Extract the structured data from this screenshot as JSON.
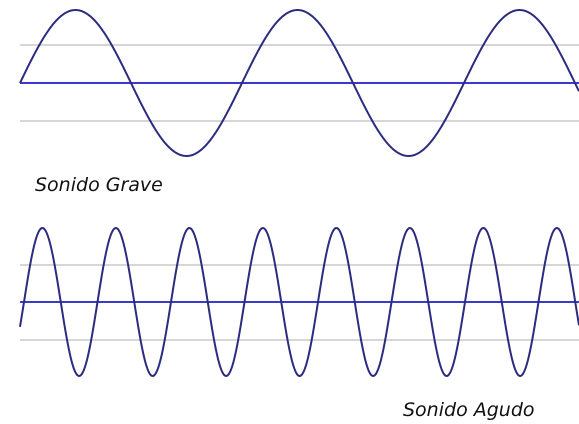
{
  "labels": {
    "low": "Sonido Grave",
    "high": "Sonido Agudo"
  }
}
